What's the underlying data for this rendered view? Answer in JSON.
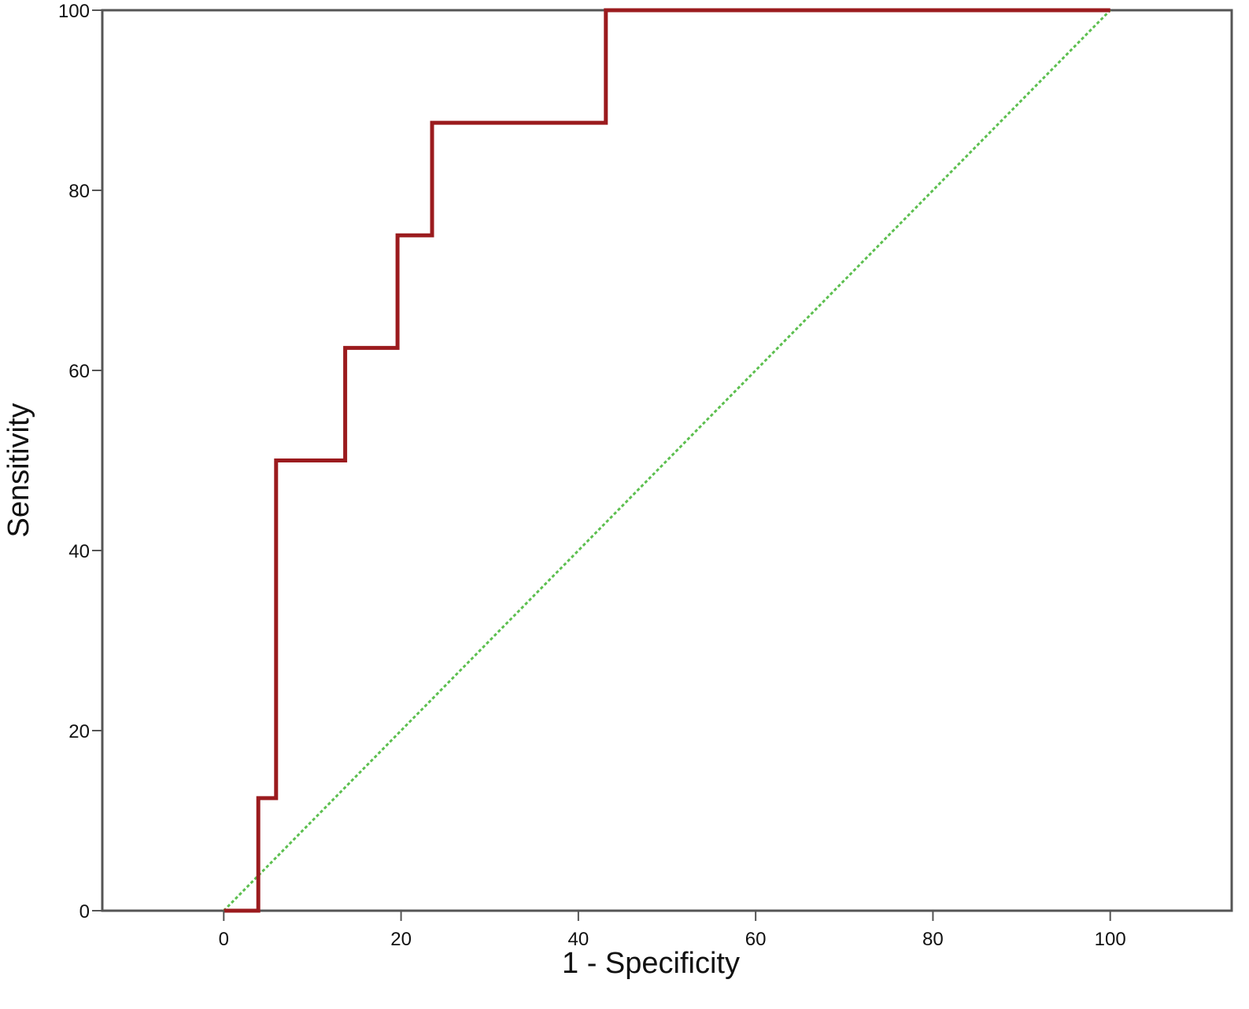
{
  "chart_data": {
    "type": "line",
    "xlabel": "1 - Specificity",
    "ylabel": "Sensitivity",
    "xlim": [
      -13.7,
      113.7
    ],
    "ylim": [
      0,
      100
    ],
    "x_ticks": [
      0,
      20,
      40,
      60,
      80,
      100
    ],
    "y_ticks": [
      0,
      20,
      40,
      60,
      80,
      100
    ],
    "grid": false,
    "legend": "none",
    "series": [
      {
        "style": "step",
        "color": "#9b1b1e",
        "x": [
          0,
          3.9,
          3.9,
          5.9,
          5.9,
          13.7,
          13.7,
          19.6,
          19.6,
          23.5,
          23.5,
          43.1,
          43.1,
          100
        ],
        "y": [
          0,
          0,
          12.5,
          12.5,
          50,
          50,
          62.5,
          62.5,
          75,
          75,
          87.5,
          87.5,
          100,
          100
        ]
      },
      {
        "style": "dotted",
        "color": "#5cbf4f",
        "x": [
          0,
          100
        ],
        "y": [
          0,
          100
        ]
      }
    ]
  }
}
